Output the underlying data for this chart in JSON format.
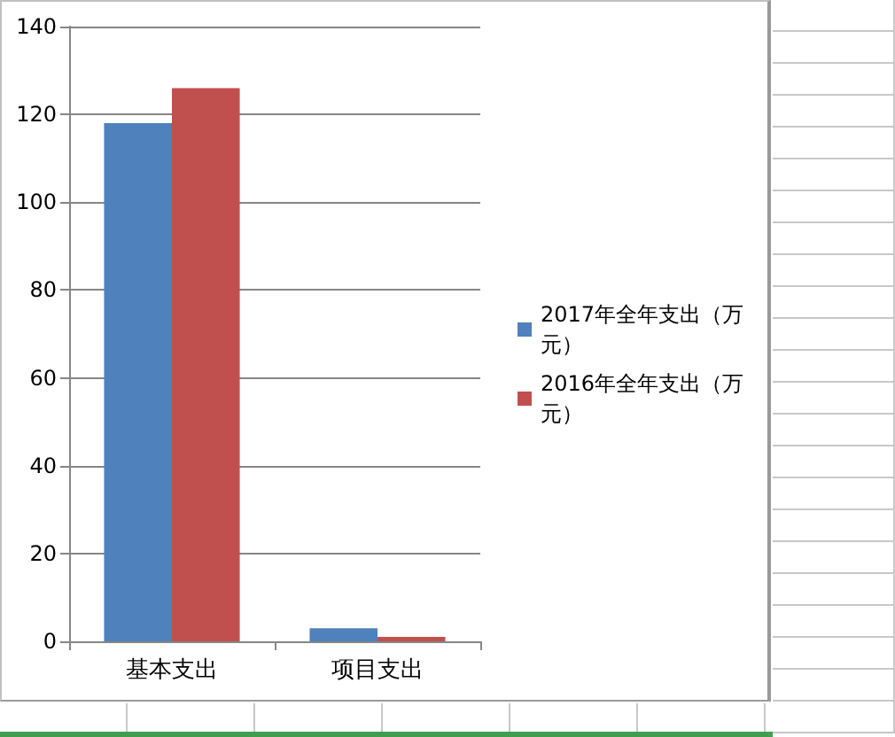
{
  "chart_data": {
    "type": "bar",
    "categories": [
      "基本支出",
      "项目支出"
    ],
    "series": [
      {
        "name": "2017年全年支出（万元）",
        "color": "#4f81bd",
        "values": [
          118,
          3
        ]
      },
      {
        "name": "2016年全年支出（万元）",
        "color": "#c0504d",
        "values": [
          126,
          1
        ]
      }
    ],
    "ylim": [
      0,
      140
    ],
    "yticks": [
      0,
      20,
      40,
      60,
      80,
      100,
      120,
      140
    ],
    "grid": "y",
    "legend": "right"
  }
}
